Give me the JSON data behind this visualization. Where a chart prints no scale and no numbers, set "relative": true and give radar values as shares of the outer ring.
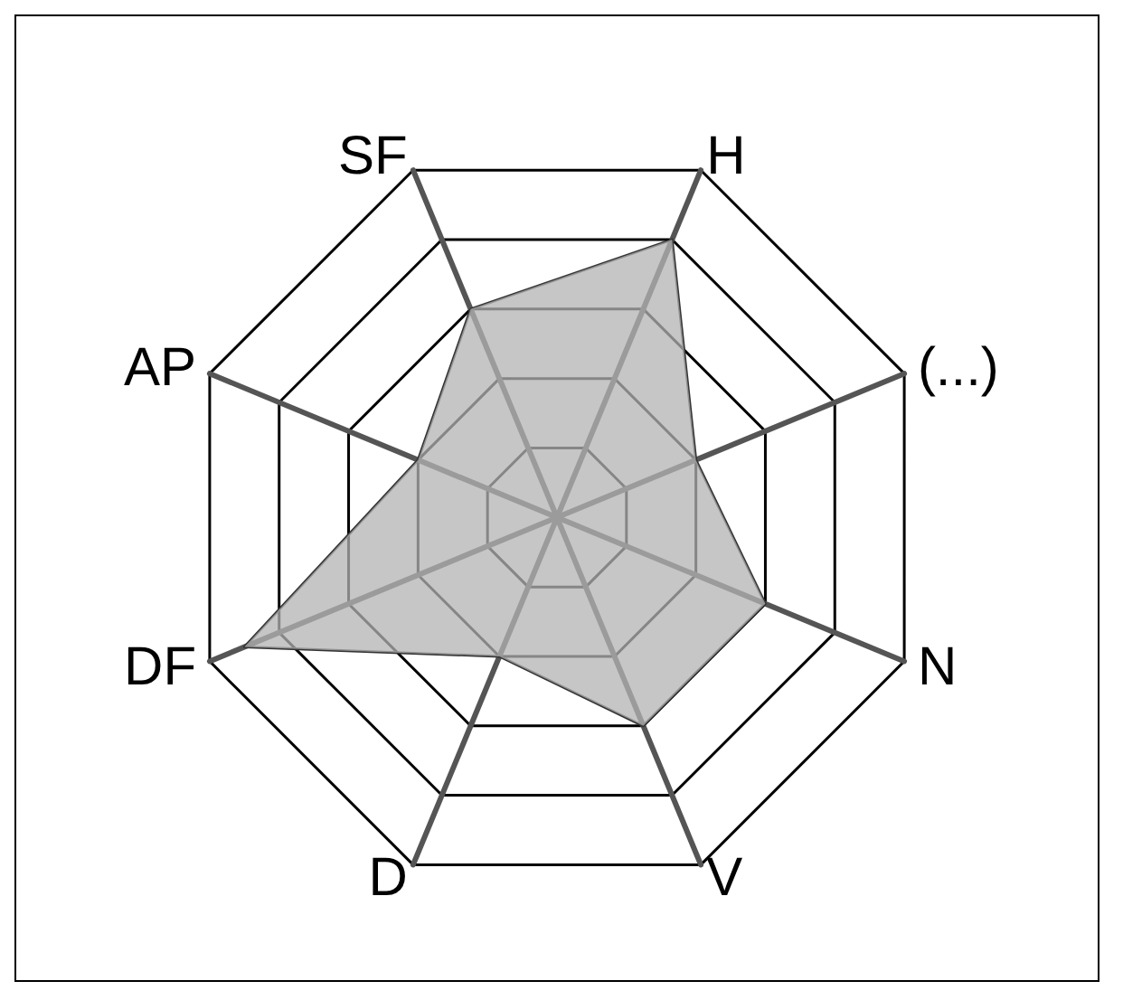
{
  "chart_data": {
    "type": "radar",
    "relative": true,
    "categories": [
      "SF",
      "H",
      "(...)",
      "N",
      "V",
      "D",
      "DF",
      "AP"
    ],
    "series": [
      {
        "color": "#b3b3b3",
        "values": [
          0.6,
          0.8,
          0.4,
          0.6,
          0.6,
          0.4,
          0.9,
          0.4
        ]
      }
    ],
    "marker": "none",
    "line_style": "solid"
  }
}
